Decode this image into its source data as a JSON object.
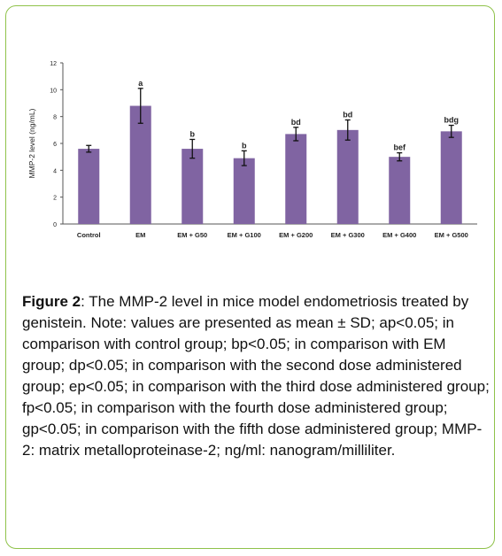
{
  "colors": {
    "border": "#8fc24a",
    "bar": "#8064a2",
    "axis": "#555555"
  },
  "chart_data": {
    "type": "bar",
    "title": "",
    "xlabel": "",
    "ylabel": "MMP-2 level (ng/mL)",
    "ylim": [
      0,
      12
    ],
    "yticks": [
      0,
      2,
      4,
      6,
      8,
      10,
      12
    ],
    "grid": false,
    "categories": [
      "Control",
      "EM",
      "EM + G50",
      "EM + G100",
      "EM + G200",
      "EM + G300",
      "EM + G400",
      "EM + G500"
    ],
    "values": [
      5.6,
      8.8,
      5.6,
      4.9,
      6.7,
      7.0,
      5.0,
      6.9
    ],
    "errors": [
      0.25,
      1.3,
      0.7,
      0.55,
      0.5,
      0.75,
      0.3,
      0.45
    ],
    "annotations": [
      "",
      "a",
      "b",
      "b",
      "bd",
      "bd",
      "bef",
      "bdg"
    ]
  },
  "caption": {
    "label": "Figure 2",
    "text": ": The MMP-2 level in mice model endometriosis treated by genistein. Note: values are presented as mean ± SD; ap<0.05; in comparison with control group; bp<0.05; in comparison with EM group; dp<0.05; in comparison with the second dose administered group; ep<0.05; in comparison with the third dose administered group; fp<0.05; in comparison with the fourth dose administered group; gp<0.05; in comparison with the fifth dose administered group; MMP-2: matrix metalloproteinase-2; ng/ml: nanogram/milliliter."
  }
}
